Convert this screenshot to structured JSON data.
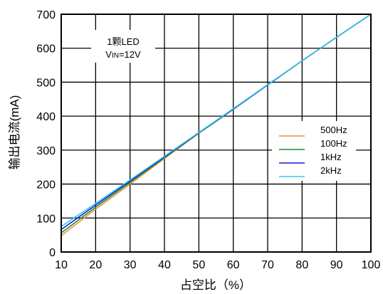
{
  "chart_data": {
    "type": "line",
    "title": "",
    "xlabel": "占空比（%）",
    "ylabel": "输出电流(mA)",
    "xlim": [
      10,
      100
    ],
    "ylim": [
      0,
      700
    ],
    "x_ticks": [
      10,
      20,
      30,
      40,
      50,
      60,
      70,
      80,
      90,
      100
    ],
    "y_ticks": [
      0,
      100,
      200,
      300,
      400,
      500,
      600,
      700
    ],
    "grid": true,
    "legend_position": "right-middle",
    "annotation": {
      "line1": "1颗LED",
      "vin_main": "V",
      "vin_sub": "IN",
      "vin_rest": "=12V"
    },
    "series": [
      {
        "name": "500Hz",
        "color": "#f58a3c",
        "x": [
          10,
          20,
          30,
          40,
          50,
          60,
          70,
          80,
          90,
          100
        ],
        "y": [
          48,
          126,
          200,
          275,
          350,
          420,
          492,
          563,
          632,
          700
        ]
      },
      {
        "name": "100Hz",
        "color": "#1a8c2a",
        "x": [
          10,
          20,
          30,
          40,
          50,
          60,
          70,
          80,
          90,
          100
        ],
        "y": [
          56,
          132,
          205,
          278,
          350,
          420,
          492,
          563,
          632,
          700
        ]
      },
      {
        "name": "1kHz",
        "color": "#1a1adc",
        "x": [
          10,
          20,
          30,
          40,
          50,
          60,
          70,
          80,
          90,
          100
        ],
        "y": [
          66,
          138,
          209,
          280,
          351,
          421,
          492,
          563,
          632,
          700
        ]
      },
      {
        "name": "2kHz",
        "color": "#33c6f0",
        "x": [
          10,
          20,
          30,
          40,
          50,
          60,
          70,
          80,
          90,
          100
        ],
        "y": [
          75,
          143,
          212,
          282,
          352,
          422,
          493,
          563,
          632,
          700
        ]
      }
    ]
  }
}
